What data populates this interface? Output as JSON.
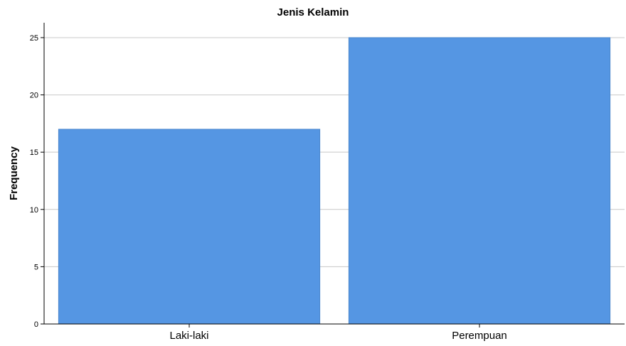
{
  "chart_data": {
    "type": "bar",
    "title": "Jenis Kelamin",
    "xlabel": "",
    "ylabel": "Frequency",
    "categories": [
      "Laki-laki",
      "Perempuan"
    ],
    "values": [
      17,
      25
    ],
    "ylim": [
      0,
      26.3
    ],
    "yticks": [
      0,
      5,
      10,
      15,
      20,
      25
    ],
    "grid": true,
    "legend": "none",
    "colors": {
      "bar": "#5596e3",
      "bar_edge": "#4a86cc",
      "grid": "#c8c8c8",
      "axis": "#000000"
    }
  }
}
